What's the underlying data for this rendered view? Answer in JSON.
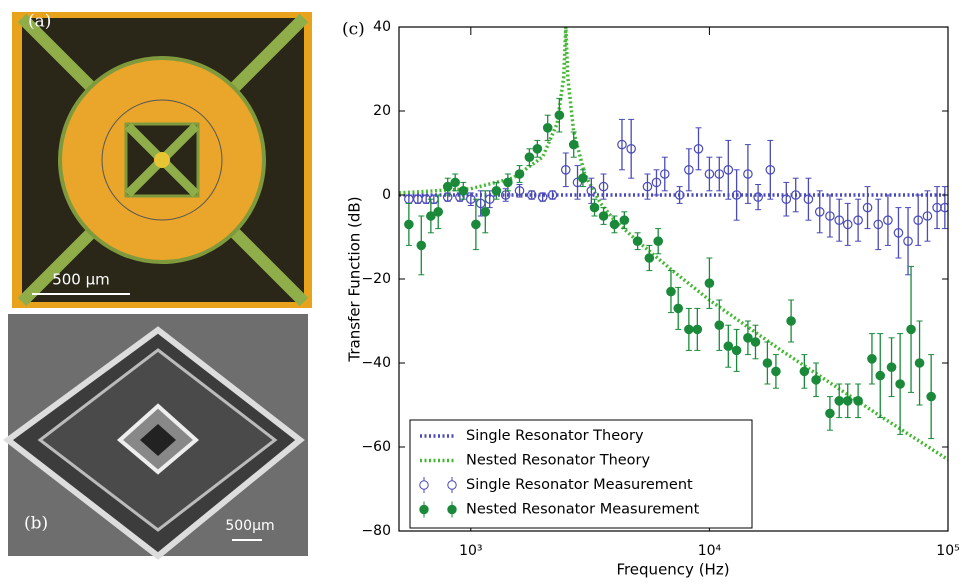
{
  "panels": [
    {
      "label": "(a)",
      "scale_bar": "500 µm"
    },
    {
      "label": "(b)",
      "scale_bar": "500µm"
    }
  ],
  "chart_data": {
    "type": "line",
    "panel_label": "(c)",
    "x_label": "Frequency (Hz)",
    "y_label": "Transfer Function (dB)",
    "xscale": "log",
    "xlim": [
      500,
      100000
    ],
    "ylim": [
      -80,
      40
    ],
    "xticks": [
      {
        "value": 1000,
        "label": "10³"
      },
      {
        "value": 10000,
        "label": "10⁴"
      },
      {
        "value": 100000,
        "label": "10⁵"
      }
    ],
    "yticks": [
      {
        "value": -80,
        "label": "−80"
      },
      {
        "value": -60,
        "label": "−60"
      },
      {
        "value": -40,
        "label": "−40"
      },
      {
        "value": -20,
        "label": "−20"
      },
      0,
      20,
      40
    ],
    "legend": "lower left",
    "series": [
      {
        "name": "Single Resonator Theory",
        "color": "#4a4ab8",
        "style": "dotted",
        "x": [
          500,
          1000,
          2000,
          5000,
          10000,
          20000,
          50000,
          100000
        ],
        "values": [
          0,
          0,
          0,
          0,
          0,
          0,
          0,
          0
        ]
      },
      {
        "name": "Nested Resonator Theory",
        "color": "#44b833",
        "style": "dotted",
        "x": [
          500,
          1000,
          1500,
          2000,
          2300,
          2450,
          2500,
          2550,
          2700,
          3000,
          3500,
          4000,
          5000,
          7000,
          10000,
          20000,
          50000,
          100000
        ],
        "values": [
          0.5,
          1.5,
          4,
          9,
          17,
          28,
          40,
          28,
          15,
          5,
          -2,
          -6,
          -11,
          -18,
          -25,
          -37,
          -52,
          -63
        ]
      },
      {
        "name": "Single Resonator Measurement",
        "color": "#4a4ab8",
        "style": "open-marker",
        "x": [
          550,
          600,
          650,
          700,
          800,
          900,
          1000,
          1100,
          1200,
          1400,
          1600,
          1800,
          2000,
          2200,
          2500,
          2800,
          3200,
          3600,
          4300,
          4700,
          5500,
          6000,
          6500,
          7500,
          8200,
          9000,
          10000,
          11000,
          12000,
          13000,
          14500,
          16000,
          18000,
          21000,
          23000,
          26000,
          29000,
          32000,
          35000,
          38000,
          42000,
          46000,
          51000,
          56000,
          62000,
          68000,
          75000,
          82000,
          90000,
          97000
        ],
        "values": [
          -1,
          -1,
          -1,
          -1,
          -0.5,
          -0.5,
          -1,
          -2,
          -1,
          0,
          1,
          0,
          -0.5,
          0,
          6,
          3,
          1,
          2,
          12,
          11,
          2,
          3,
          5,
          0,
          6,
          11,
          5,
          5,
          6,
          0,
          5,
          -0.5,
          6,
          -1,
          0,
          -1,
          -4,
          -5,
          -6,
          -7,
          -6,
          -3,
          -7,
          -6,
          -9,
          -11,
          -6,
          -5,
          -3,
          -3
        ],
        "errors": [
          1,
          1,
          1,
          1,
          1,
          1,
          1.5,
          3,
          2,
          1.5,
          1.5,
          1,
          1,
          1,
          4,
          4,
          3,
          3,
          6,
          7,
          3,
          3,
          4,
          2,
          5,
          5,
          4,
          4,
          7,
          6,
          7,
          3,
          7,
          4,
          4,
          5,
          5,
          5,
          5,
          5,
          5,
          5,
          6,
          6,
          6,
          8,
          6,
          6,
          5,
          5
        ]
      },
      {
        "name": "Nested Resonator Measurement",
        "color": "#1a8a3a",
        "style": "filled-marker",
        "x": [
          550,
          620,
          680,
          730,
          800,
          860,
          930,
          1050,
          1150,
          1280,
          1430,
          1600,
          1760,
          1900,
          2100,
          2350,
          2700,
          2950,
          3300,
          3600,
          4000,
          4400,
          5000,
          5600,
          6100,
          6900,
          7400,
          8200,
          8900,
          10000,
          11000,
          12000,
          13000,
          14500,
          15600,
          17500,
          19000,
          22000,
          25000,
          28000,
          32000,
          35000,
          38000,
          42000,
          48000,
          52000,
          58000,
          63000,
          70000,
          76000,
          85000
        ],
        "values": [
          -7,
          -12,
          -5,
          -4,
          2,
          3,
          1,
          -7,
          -4,
          1,
          3,
          5,
          9,
          11,
          16,
          19,
          12,
          4,
          -3,
          -5,
          -7,
          -6,
          -11,
          -15,
          -11,
          -23,
          -27,
          -32,
          -32,
          -21,
          -31,
          -36,
          -37,
          -34,
          -35,
          -40,
          -42,
          -30,
          -42,
          -44,
          -52,
          -49,
          -49,
          -49,
          -39,
          -43,
          -41,
          -45,
          -32,
          -40,
          -48
        ],
        "errors": [
          5,
          7,
          4,
          4,
          2,
          2,
          2,
          6,
          5,
          2,
          2,
          2,
          2,
          2,
          3,
          4,
          3,
          2,
          2,
          2,
          2,
          2,
          2,
          3,
          3,
          5,
          5,
          5,
          5,
          6,
          6,
          5,
          5,
          4,
          4,
          5,
          4,
          5,
          4,
          4,
          4,
          4,
          4,
          4,
          6,
          10,
          7,
          12,
          15,
          10,
          10
        ]
      }
    ]
  }
}
